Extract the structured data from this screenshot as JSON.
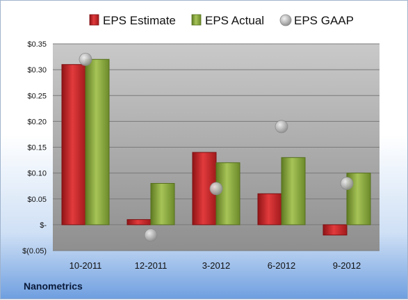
{
  "brand": "Nanometrics",
  "chart_data": {
    "type": "bar",
    "categories": [
      "10-2011",
      "12-2011",
      "3-2012",
      "6-2012",
      "9-2012"
    ],
    "series": [
      {
        "name": "EPS Estimate",
        "kind": "bar",
        "color": "#c0282a",
        "values": [
          0.31,
          0.01,
          0.14,
          0.06,
          -0.02
        ]
      },
      {
        "name": "EPS Actual",
        "kind": "bar",
        "color": "#8aaa3c",
        "values": [
          0.32,
          0.08,
          0.12,
          0.13,
          0.1
        ]
      },
      {
        "name": "EPS GAAP",
        "kind": "marker",
        "color": "#b8b8b8",
        "values": [
          0.32,
          -0.02,
          0.07,
          0.19,
          0.08
        ]
      }
    ],
    "y_ticks": [
      {
        "value": 0.35,
        "label": "$0.35"
      },
      {
        "value": 0.3,
        "label": "$0.30"
      },
      {
        "value": 0.25,
        "label": "$0.25"
      },
      {
        "value": 0.2,
        "label": "$0.20"
      },
      {
        "value": 0.15,
        "label": "$0.15"
      },
      {
        "value": 0.1,
        "label": "$0.10"
      },
      {
        "value": 0.05,
        "label": "$0.05"
      },
      {
        "value": 0.0,
        "label": "$-"
      },
      {
        "value": -0.05,
        "label": "$(0.05)"
      }
    ],
    "ylim": [
      -0.05,
      0.35
    ],
    "grid": true,
    "legend_position": "top",
    "title": "",
    "xlabel": "",
    "ylabel": ""
  }
}
